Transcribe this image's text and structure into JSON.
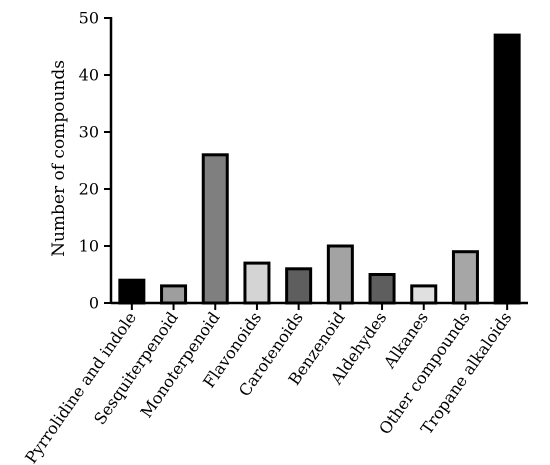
{
  "chart_data": {
    "type": "bar",
    "title": "",
    "xlabel": "",
    "ylabel": "Number of compounds",
    "ylim": [
      0,
      50
    ],
    "y_ticks": [
      0,
      10,
      20,
      30,
      40,
      50
    ],
    "grid": false,
    "categories": [
      "Pyrrolidine and indole",
      "Sesquiterpenoid",
      "Monoterpenoid",
      "Flavonoids",
      "Carotenoids",
      "Benzenoid",
      "Aldehydes",
      "Alkanes",
      "Other compounds",
      "Tropane alkaloids"
    ],
    "values": [
      4,
      3,
      26,
      7,
      6,
      10,
      5,
      3,
      9,
      47
    ],
    "colors": [
      "#000000",
      "#9e9e9e",
      "#7f7f7f",
      "#d4d4d4",
      "#5e5e5e",
      "#a3a3a3",
      "#5e5e5e",
      "#e0e0e0",
      "#a6a6a6",
      "#000000"
    ]
  }
}
